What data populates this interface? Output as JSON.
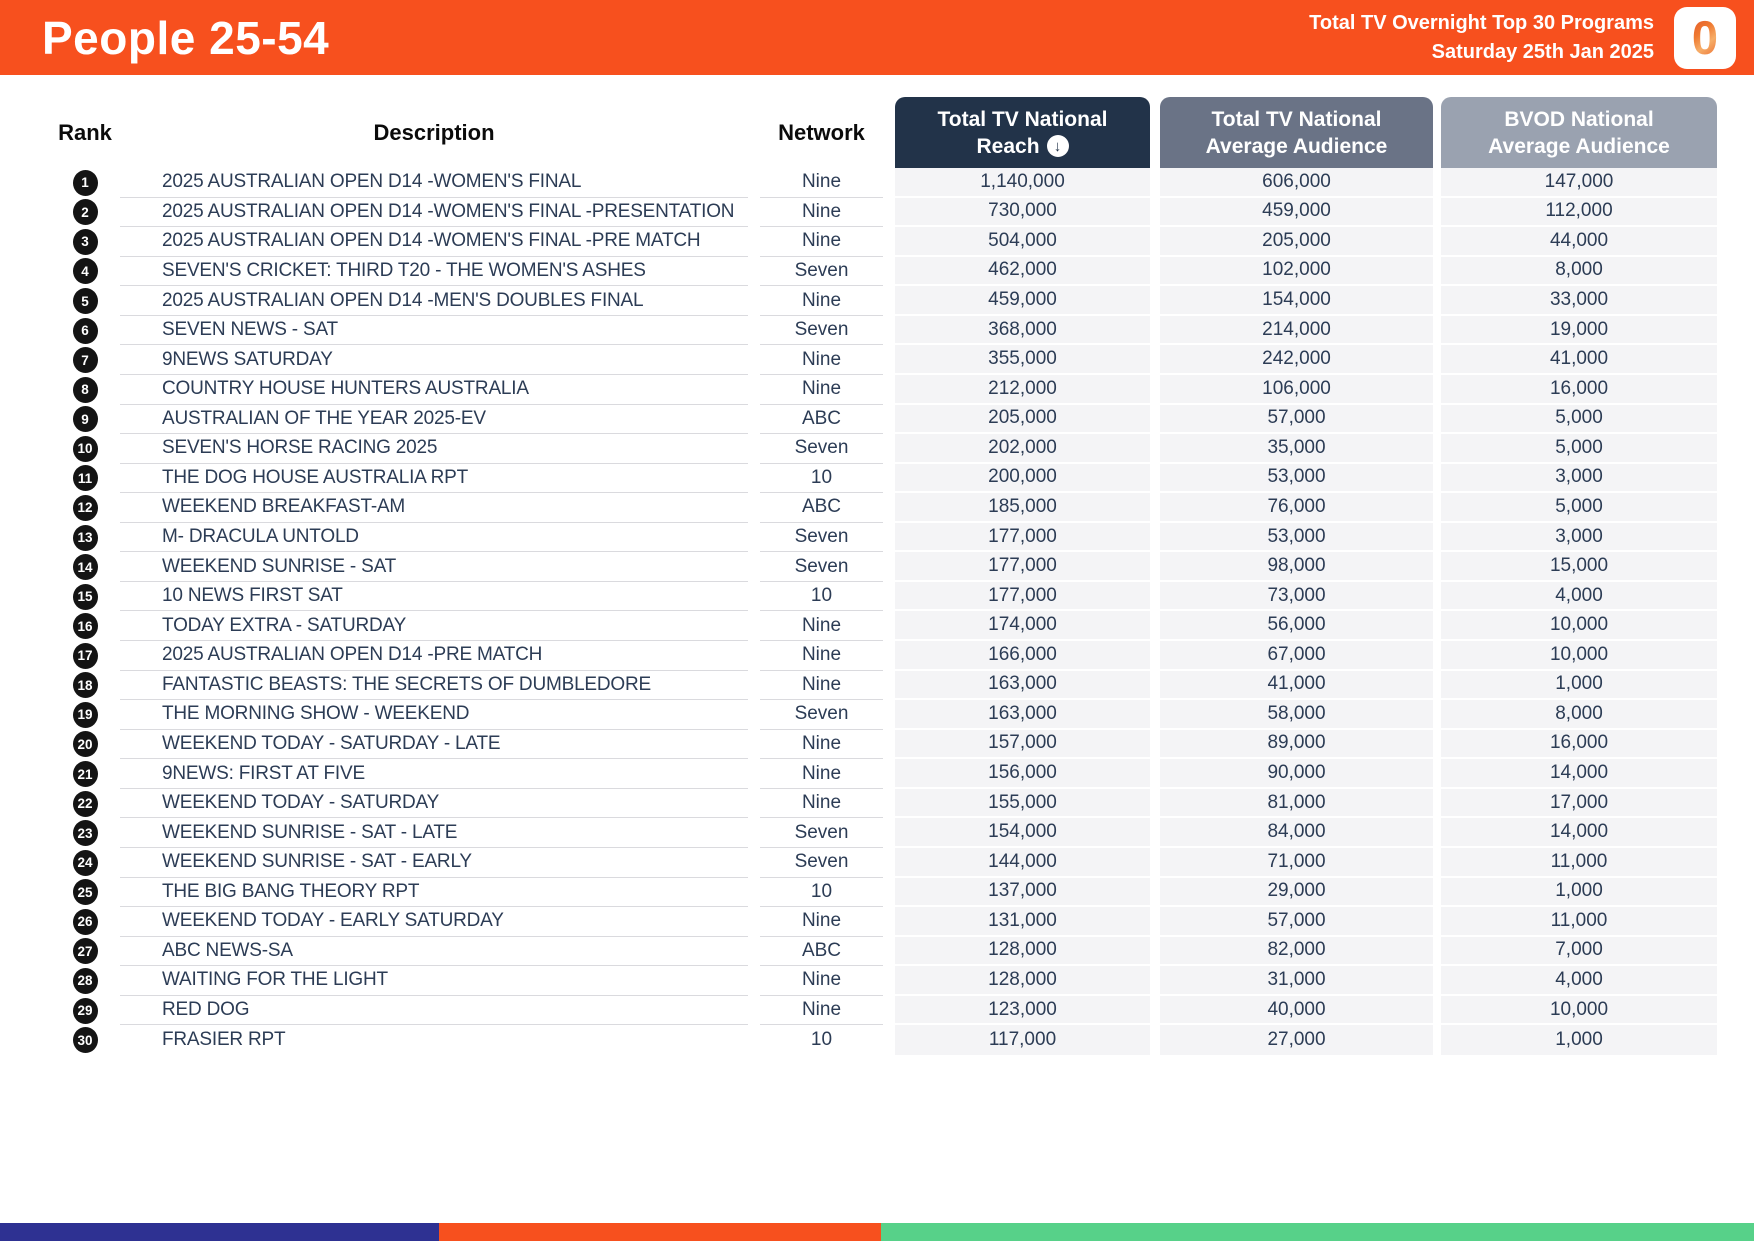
{
  "header": {
    "title": "People 25-54",
    "report_title": "Total TV Overnight Top 30 Programs",
    "report_date": "Saturday 25th Jan 2025",
    "logo_glyph": "0"
  },
  "table": {
    "col_rank": "Rank",
    "col_description": "Description",
    "col_network": "Network",
    "col_reach_line1": "Total TV National",
    "col_reach_line2": "Reach",
    "col_avg_line1": "Total TV National",
    "col_avg_line2": "Average Audience",
    "col_bvod_line1": "BVOD National",
    "col_bvod_line2": "Average Audience",
    "sort_icon": "↓",
    "rows": [
      {
        "rank": "1",
        "description": "2025 AUSTRALIAN OPEN D14 -WOMEN'S FINAL",
        "network": "Nine",
        "reach": "1,140,000",
        "avg": "606,000",
        "bvod": "147,000"
      },
      {
        "rank": "2",
        "description": "2025 AUSTRALIAN OPEN D14 -WOMEN'S FINAL -PRESENTATION",
        "network": "Nine",
        "reach": "730,000",
        "avg": "459,000",
        "bvod": "112,000"
      },
      {
        "rank": "3",
        "description": "2025 AUSTRALIAN OPEN D14 -WOMEN'S FINAL -PRE MATCH",
        "network": "Nine",
        "reach": "504,000",
        "avg": "205,000",
        "bvod": "44,000"
      },
      {
        "rank": "4",
        "description": "SEVEN'S CRICKET: THIRD T20 - THE WOMEN'S ASHES",
        "network": "Seven",
        "reach": "462,000",
        "avg": "102,000",
        "bvod": "8,000"
      },
      {
        "rank": "5",
        "description": "2025 AUSTRALIAN OPEN D14 -MEN'S DOUBLES FINAL",
        "network": "Nine",
        "reach": "459,000",
        "avg": "154,000",
        "bvod": "33,000"
      },
      {
        "rank": "6",
        "description": "SEVEN NEWS - SAT",
        "network": "Seven",
        "reach": "368,000",
        "avg": "214,000",
        "bvod": "19,000"
      },
      {
        "rank": "7",
        "description": "9NEWS SATURDAY",
        "network": "Nine",
        "reach": "355,000",
        "avg": "242,000",
        "bvod": "41,000"
      },
      {
        "rank": "8",
        "description": "COUNTRY HOUSE HUNTERS AUSTRALIA",
        "network": "Nine",
        "reach": "212,000",
        "avg": "106,000",
        "bvod": "16,000"
      },
      {
        "rank": "9",
        "description": "AUSTRALIAN OF THE YEAR 2025-EV",
        "network": "ABC",
        "reach": "205,000",
        "avg": "57,000",
        "bvod": "5,000"
      },
      {
        "rank": "10",
        "description": "SEVEN'S HORSE RACING 2025",
        "network": "Seven",
        "reach": "202,000",
        "avg": "35,000",
        "bvod": "5,000"
      },
      {
        "rank": "11",
        "description": "THE DOG HOUSE AUSTRALIA RPT",
        "network": "10",
        "reach": "200,000",
        "avg": "53,000",
        "bvod": "3,000"
      },
      {
        "rank": "12",
        "description": "WEEKEND BREAKFAST-AM",
        "network": "ABC",
        "reach": "185,000",
        "avg": "76,000",
        "bvod": "5,000"
      },
      {
        "rank": "13",
        "description": "M- DRACULA UNTOLD",
        "network": "Seven",
        "reach": "177,000",
        "avg": "53,000",
        "bvod": "3,000"
      },
      {
        "rank": "14",
        "description": "WEEKEND SUNRISE - SAT",
        "network": "Seven",
        "reach": "177,000",
        "avg": "98,000",
        "bvod": "15,000"
      },
      {
        "rank": "15",
        "description": "10 NEWS FIRST SAT",
        "network": "10",
        "reach": "177,000",
        "avg": "73,000",
        "bvod": "4,000"
      },
      {
        "rank": "16",
        "description": "TODAY EXTRA - SATURDAY",
        "network": "Nine",
        "reach": "174,000",
        "avg": "56,000",
        "bvod": "10,000"
      },
      {
        "rank": "17",
        "description": "2025 AUSTRALIAN OPEN D14 -PRE MATCH",
        "network": "Nine",
        "reach": "166,000",
        "avg": "67,000",
        "bvod": "10,000"
      },
      {
        "rank": "18",
        "description": "FANTASTIC BEASTS: THE SECRETS OF DUMBLEDORE",
        "network": "Nine",
        "reach": "163,000",
        "avg": "41,000",
        "bvod": "1,000"
      },
      {
        "rank": "19",
        "description": "THE MORNING SHOW - WEEKEND",
        "network": "Seven",
        "reach": "163,000",
        "avg": "58,000",
        "bvod": "8,000"
      },
      {
        "rank": "20",
        "description": "WEEKEND TODAY - SATURDAY - LATE",
        "network": "Nine",
        "reach": "157,000",
        "avg": "89,000",
        "bvod": "16,000"
      },
      {
        "rank": "21",
        "description": "9NEWS: FIRST AT FIVE",
        "network": "Nine",
        "reach": "156,000",
        "avg": "90,000",
        "bvod": "14,000"
      },
      {
        "rank": "22",
        "description": "WEEKEND TODAY - SATURDAY",
        "network": "Nine",
        "reach": "155,000",
        "avg": "81,000",
        "bvod": "17,000"
      },
      {
        "rank": "23",
        "description": "WEEKEND SUNRISE - SAT - LATE",
        "network": "Seven",
        "reach": "154,000",
        "avg": "84,000",
        "bvod": "14,000"
      },
      {
        "rank": "24",
        "description": "WEEKEND SUNRISE - SAT - EARLY",
        "network": "Seven",
        "reach": "144,000",
        "avg": "71,000",
        "bvod": "11,000"
      },
      {
        "rank": "25",
        "description": "THE BIG BANG THEORY RPT",
        "network": "10",
        "reach": "137,000",
        "avg": "29,000",
        "bvod": "1,000"
      },
      {
        "rank": "26",
        "description": "WEEKEND TODAY - EARLY SATURDAY",
        "network": "Nine",
        "reach": "131,000",
        "avg": "57,000",
        "bvod": "11,000"
      },
      {
        "rank": "27",
        "description": "ABC NEWS-SA",
        "network": "ABC",
        "reach": "128,000",
        "avg": "82,000",
        "bvod": "7,000"
      },
      {
        "rank": "28",
        "description": "WAITING FOR THE LIGHT",
        "network": "Nine",
        "reach": "128,000",
        "avg": "31,000",
        "bvod": "4,000"
      },
      {
        "rank": "29",
        "description": "RED DOG",
        "network": "Nine",
        "reach": "123,000",
        "avg": "40,000",
        "bvod": "10,000"
      },
      {
        "rank": "30",
        "description": "FRASIER RPT",
        "network": "10",
        "reach": "117,000",
        "avg": "27,000",
        "bvod": "1,000"
      }
    ]
  },
  "colors": {
    "accent_orange": "#F7501E",
    "navy": "#223349",
    "slate": "#6A7386",
    "light_slate": "#9AA2B0",
    "text_navy": "#2C3C55",
    "footer_blue": "#2E3192",
    "footer_green": "#57D189"
  }
}
